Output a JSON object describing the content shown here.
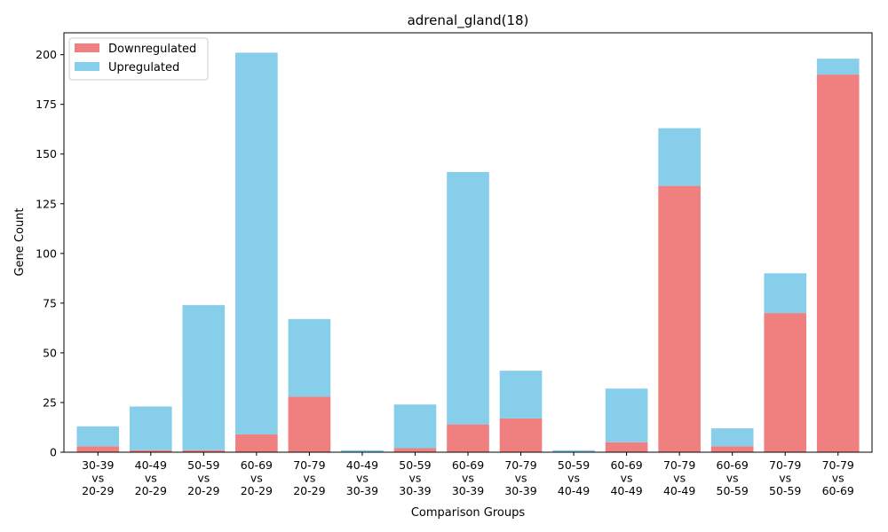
{
  "chart_data": {
    "type": "bar",
    "stacked": true,
    "title": "adrenal_gland(18)",
    "xlabel": "Comparison Groups",
    "ylabel": "Gene Count",
    "ylim": [
      0,
      211
    ],
    "yticks": [
      0,
      25,
      50,
      75,
      100,
      125,
      150,
      175,
      200
    ],
    "grid": false,
    "legend_position": "top-left",
    "categories": [
      [
        "30-39",
        "vs",
        "20-29"
      ],
      [
        "40-49",
        "vs",
        "20-29"
      ],
      [
        "50-59",
        "vs",
        "20-29"
      ],
      [
        "60-69",
        "vs",
        "20-29"
      ],
      [
        "70-79",
        "vs",
        "20-29"
      ],
      [
        "40-49",
        "vs",
        "30-39"
      ],
      [
        "50-59",
        "vs",
        "30-39"
      ],
      [
        "60-69",
        "vs",
        "30-39"
      ],
      [
        "70-79",
        "vs",
        "30-39"
      ],
      [
        "50-59",
        "vs",
        "40-49"
      ],
      [
        "60-69",
        "vs",
        "40-49"
      ],
      [
        "70-79",
        "vs",
        "40-49"
      ],
      [
        "60-69",
        "vs",
        "50-59"
      ],
      [
        "70-79",
        "vs",
        "50-59"
      ],
      [
        "70-79",
        "vs",
        "60-69"
      ]
    ],
    "series": [
      {
        "name": "Downregulated",
        "color": "#f08080",
        "values": [
          3,
          1,
          1,
          9,
          28,
          0,
          2,
          14,
          17,
          0,
          5,
          134,
          3,
          70,
          190
        ]
      },
      {
        "name": "Upregulated",
        "color": "#87ceeb",
        "values": [
          10,
          22,
          73,
          192,
          39,
          1,
          22,
          127,
          24,
          1,
          27,
          29,
          9,
          20,
          8
        ]
      }
    ]
  }
}
